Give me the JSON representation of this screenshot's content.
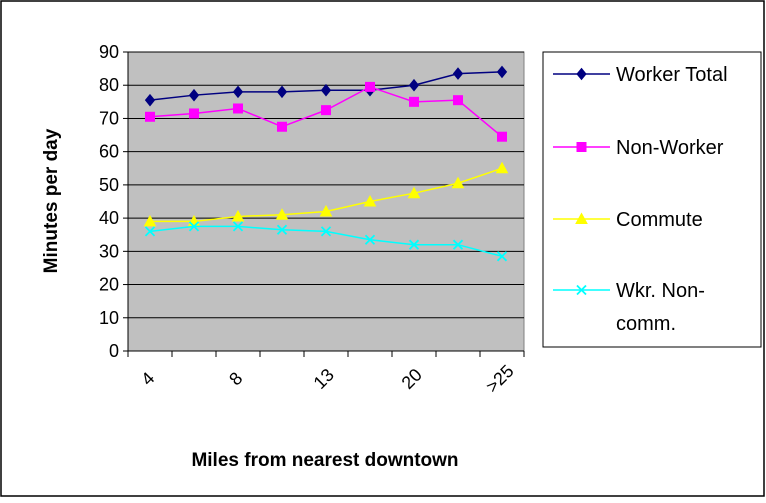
{
  "chart_data": {
    "type": "line",
    "title": "",
    "xlabel": "Miles from nearest downtown",
    "ylabel": "Minutes per day",
    "ylim": [
      0,
      90
    ],
    "ytick_labels": [
      "0",
      "10",
      "20",
      "30",
      "40",
      "50",
      "60",
      "70",
      "80",
      "90"
    ],
    "x_tick_labels": [
      "4",
      "",
      "8",
      "",
      "13",
      "",
      "20",
      "",
      ">25"
    ],
    "grid": true,
    "legend_position": "right",
    "background": "#C0C0C0",
    "series": [
      {
        "name": "Worker Total",
        "color": "#000080",
        "marker": "diamond",
        "values": [
          75.5,
          77,
          78,
          78,
          78.5,
          78.5,
          80,
          83.5,
          84
        ]
      },
      {
        "name": "Non-Worker",
        "color": "#FF00FF",
        "marker": "square",
        "values": [
          70.5,
          71.5,
          73,
          67.5,
          72.5,
          79.5,
          75,
          75.5,
          64.5
        ]
      },
      {
        "name": "Commute",
        "color": "#FFFF00",
        "marker": "triangle",
        "values": [
          39,
          39,
          40.5,
          41,
          42,
          45,
          47.5,
          50.5,
          55
        ]
      },
      {
        "name": "Wkr. Non-comm.",
        "legend_lines": [
          "Wkr. Non-",
          "comm."
        ],
        "color": "#00FFFF",
        "marker": "x",
        "values": [
          36,
          37.5,
          37.5,
          36.5,
          36,
          33.5,
          32,
          32,
          28.5
        ]
      }
    ]
  }
}
